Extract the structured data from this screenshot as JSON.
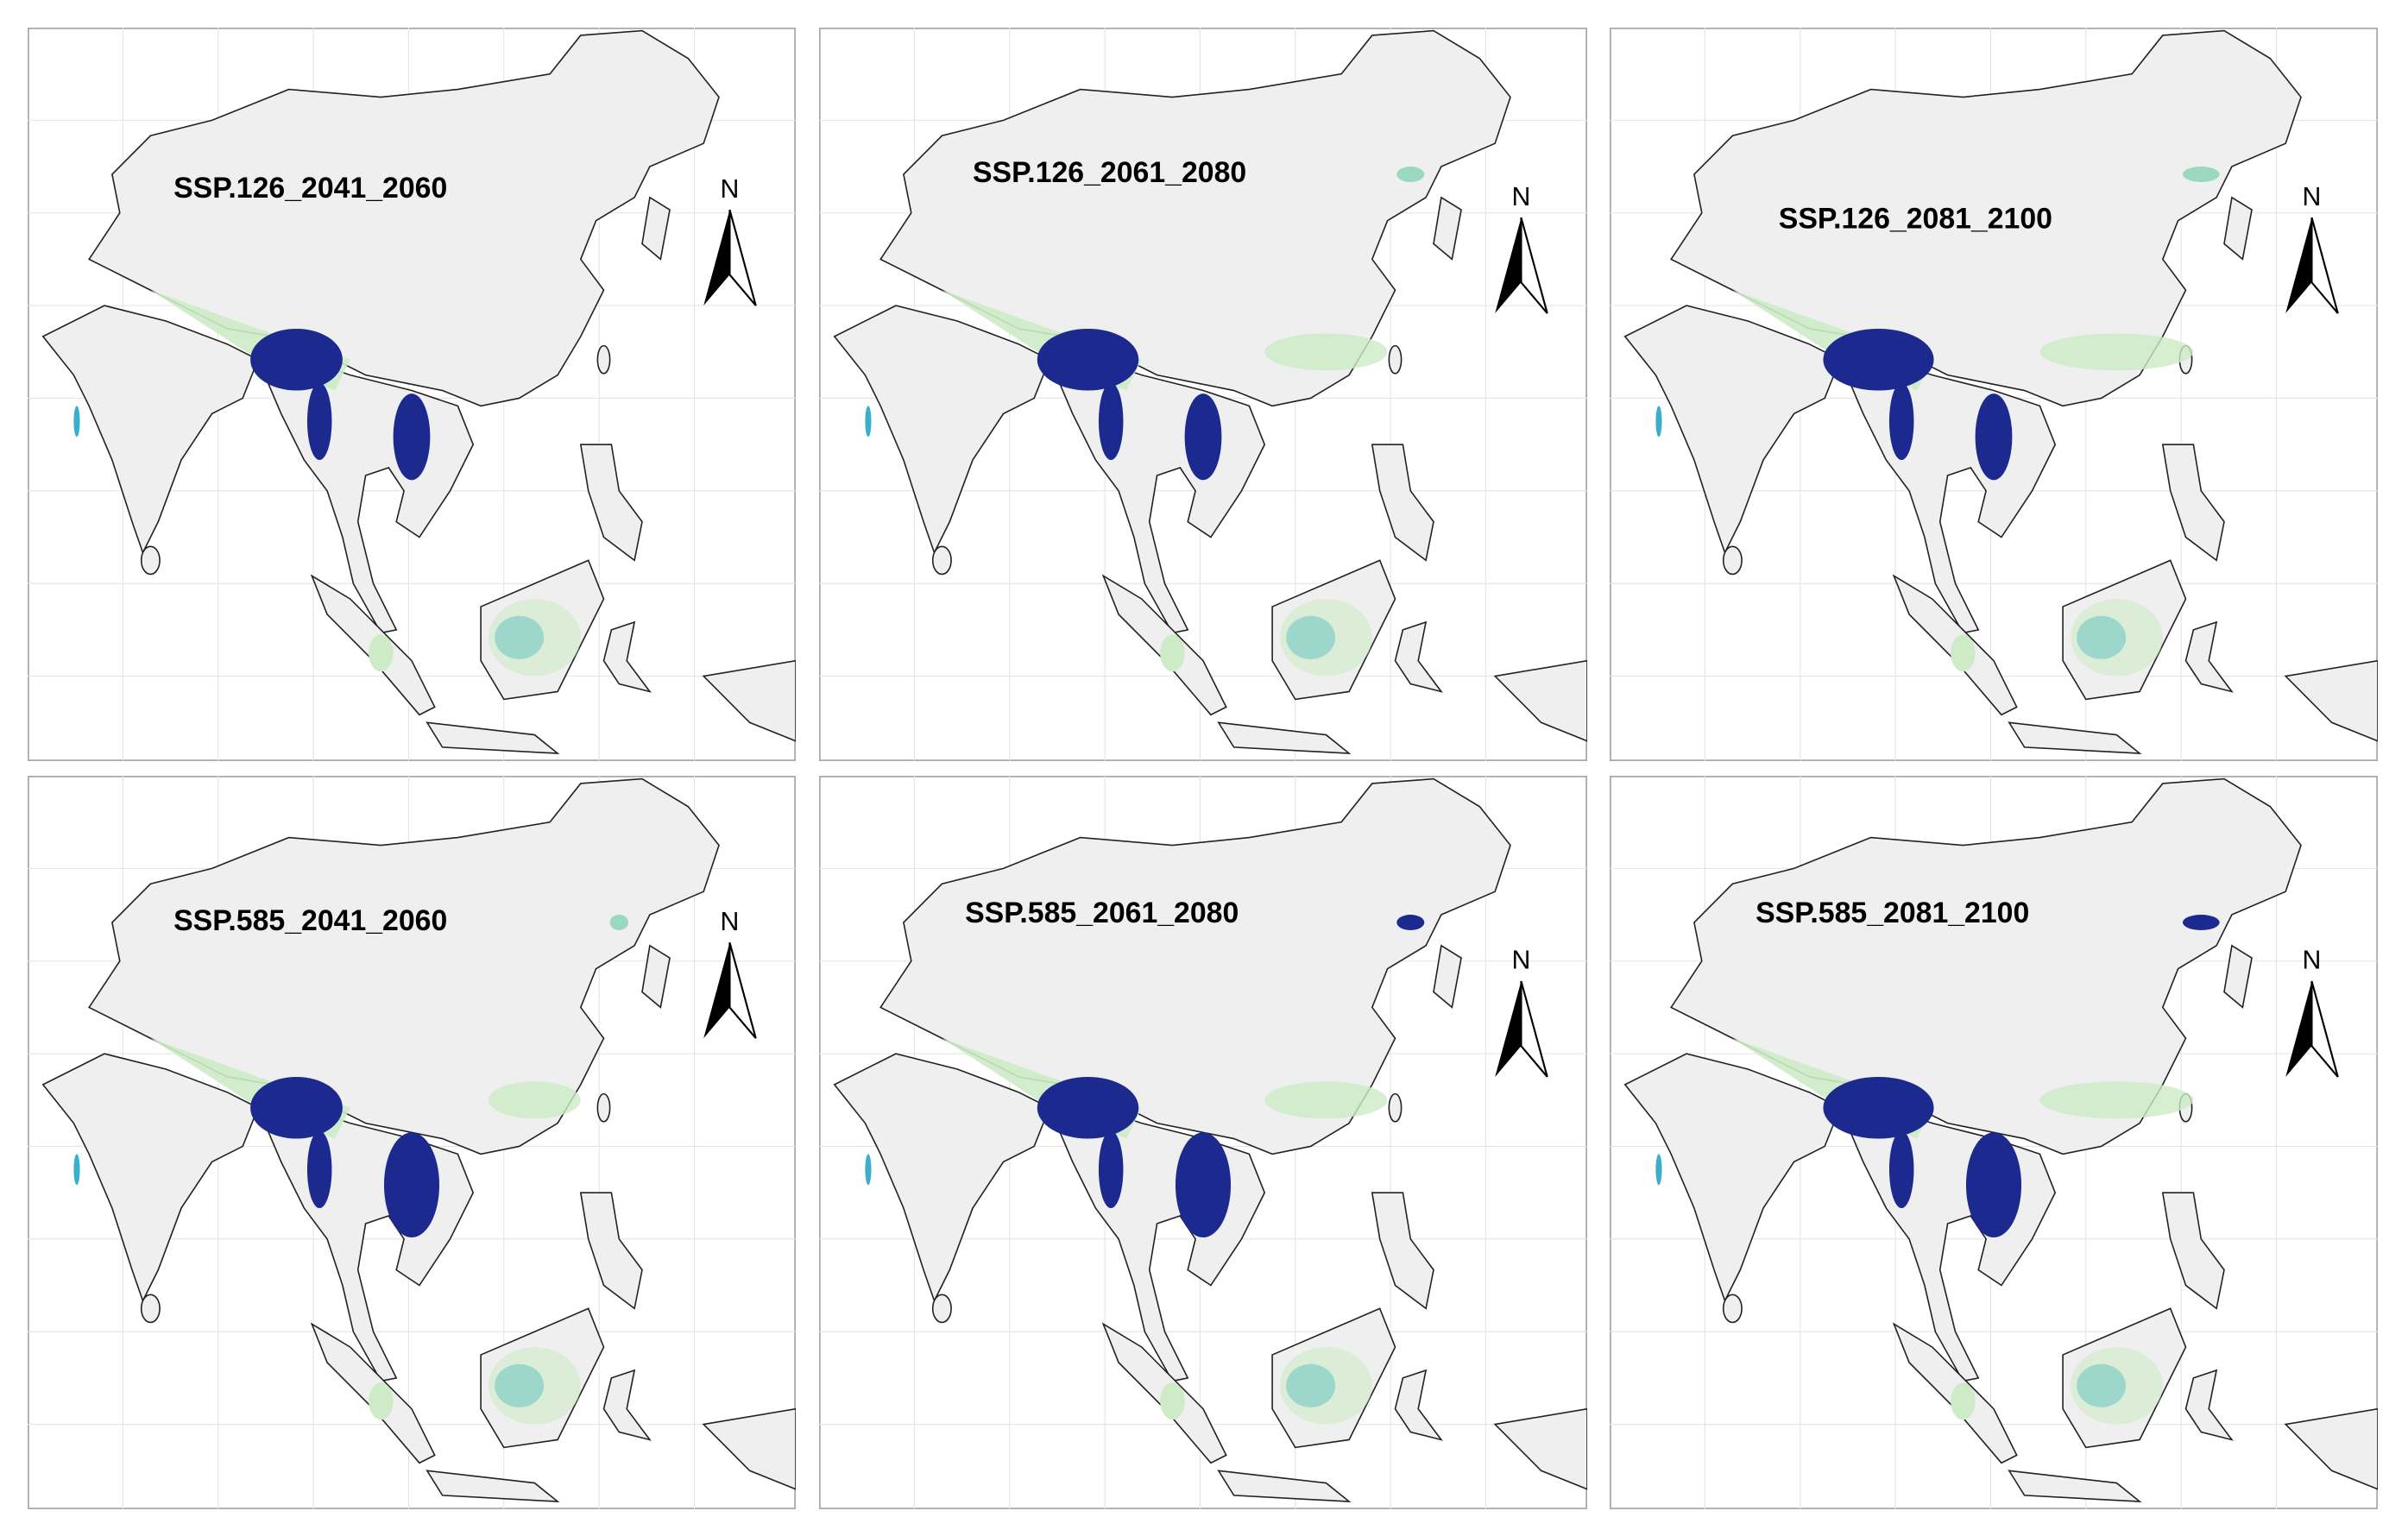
{
  "panels": [
    {
      "title": "SSP.126_2041_2060",
      "north": "N"
    },
    {
      "title": "SSP.126_2061_2080",
      "north": "N"
    },
    {
      "title": "SSP.126_2081_2100",
      "north": "N"
    },
    {
      "title": "SSP.585_2041_2060",
      "north": "N"
    },
    {
      "title": "SSP.585_2061_2080",
      "north": "N"
    },
    {
      "title": "SSP.585_2081_2100",
      "north": "N"
    }
  ]
}
